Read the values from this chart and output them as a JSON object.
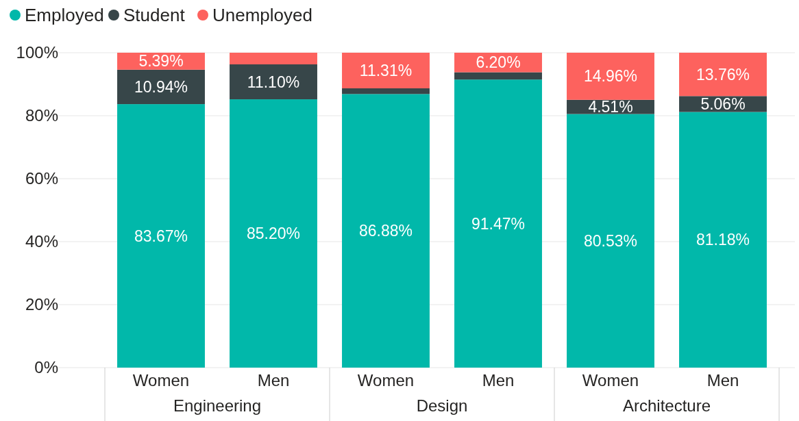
{
  "chart_data": {
    "type": "bar",
    "stacked": true,
    "categories": [
      "Women",
      "Men",
      "Women",
      "Men",
      "Women",
      "Men"
    ],
    "annotations": [
      "Engineering",
      "Design",
      "Architecture"
    ],
    "series": [
      {
        "name": "Employed",
        "color": "#01b8aa",
        "values": [
          83.67,
          85.2,
          86.88,
          91.47,
          80.53,
          81.18
        ],
        "value_labels": [
          "83.67%",
          "85.20%",
          "86.88%",
          "91.47%",
          "80.53%",
          "81.18%"
        ]
      },
      {
        "name": "Student",
        "color": "#374649",
        "values": [
          10.94,
          11.1,
          1.81,
          2.33,
          4.51,
          5.06
        ],
        "value_labels": [
          "10.94%",
          "11.10%",
          null,
          null,
          "4.51%",
          "5.06%"
        ]
      },
      {
        "name": "Unemployed",
        "color": "#fd625e",
        "values": [
          5.39,
          3.7,
          11.31,
          6.2,
          14.96,
          13.76
        ],
        "value_labels": [
          "5.39%",
          null,
          "11.31%",
          "6.20%",
          "14.96%",
          "13.76%"
        ]
      }
    ],
    "ylim": [
      0,
      100
    ],
    "yticks": [
      {
        "value": 0,
        "label": "0%"
      },
      {
        "value": 20,
        "label": "20%"
      },
      {
        "value": 40,
        "label": "40%"
      },
      {
        "value": 60,
        "label": "60%"
      },
      {
        "value": 80,
        "label": "80%"
      },
      {
        "value": 100,
        "label": "100%"
      }
    ],
    "grid": "y",
    "legend": "top left"
  }
}
